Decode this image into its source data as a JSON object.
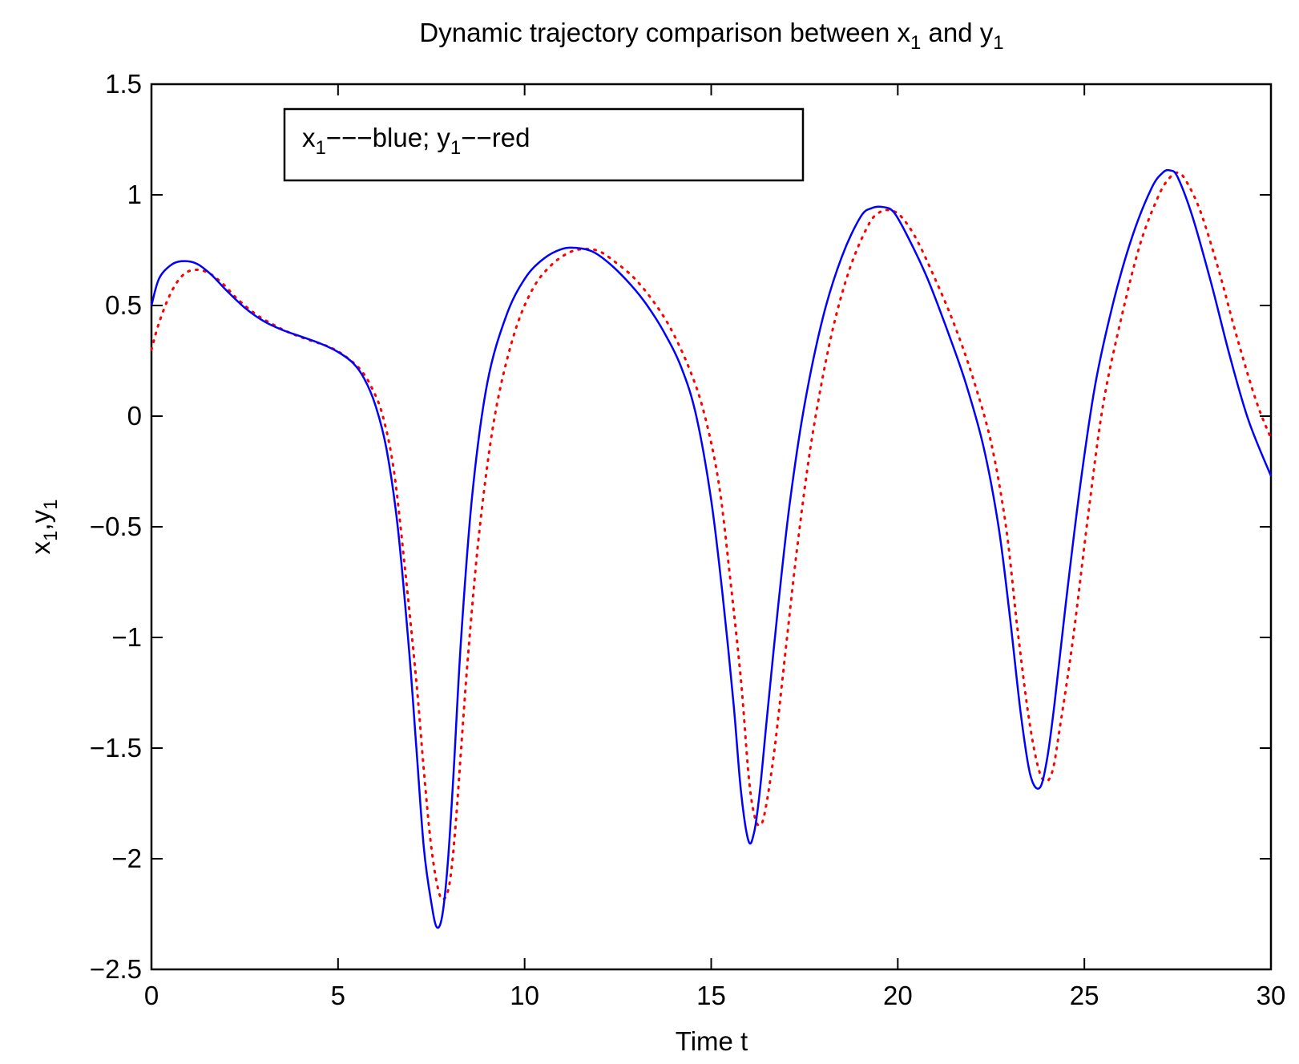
{
  "chart_data": {
    "type": "line",
    "title": "Dynamic trajectory comparison between x₁ and y₁",
    "title_parts": {
      "prefix": "Dynamic trajectory comparison between x",
      "sub1": "1",
      "mid": " and y",
      "sub2": "1"
    },
    "xlabel": "Time t",
    "ylabel": "x₁,y₁",
    "ylabel_parts": {
      "a": "x",
      "sub_a": "1",
      "sep": ",y",
      "sub_b": "1"
    },
    "xlim": [
      0,
      30
    ],
    "ylim": [
      -2.5,
      1.5
    ],
    "xticks": [
      0,
      5,
      10,
      15,
      20,
      25,
      30
    ],
    "xtick_labels": [
      "0",
      "5",
      "10",
      "15",
      "20",
      "25",
      "30"
    ],
    "yticks": [
      1.5,
      1,
      0.5,
      0,
      -0.5,
      -1,
      -1.5,
      -2,
      -2.5
    ],
    "ytick_labels": [
      "1.5",
      "1",
      "0.5",
      "0",
      "−0.5",
      "−1",
      "−1.5",
      "−2",
      "−2.5"
    ],
    "grid": false,
    "legend": {
      "text": "x₁---blue; y₁--red",
      "parts": {
        "a": "x",
        "sub_a": "1",
        "mid": "−−−blue; y",
        "sub_b": "1",
        "end": "−−red"
      },
      "placement": "top-left"
    },
    "series": [
      {
        "color": "#0000ff",
        "style": "solid",
        "x": [
          0,
          0.2,
          0.5,
          0.8,
          1.2,
          1.6,
          2.0,
          2.5,
          3.0,
          3.5,
          4.0,
          4.5,
          5.0,
          5.4,
          5.7,
          6.0,
          6.3,
          6.6,
          6.9,
          7.1,
          7.3,
          7.5,
          7.65,
          7.8,
          7.95,
          8.1,
          8.3,
          8.6,
          9.0,
          9.5,
          10.0,
          10.5,
          11.0,
          11.4,
          11.8,
          12.2,
          12.7,
          13.2,
          13.7,
          14.2,
          14.6,
          15.0,
          15.3,
          15.6,
          15.8,
          16.0,
          16.15,
          16.3,
          16.5,
          16.8,
          17.1,
          17.5,
          18.0,
          18.5,
          19.0,
          19.3,
          19.6,
          19.9,
          20.3,
          20.8,
          21.3,
          21.8,
          22.3,
          22.7,
          23.0,
          23.3,
          23.55,
          23.8,
          24.0,
          24.2,
          24.5,
          24.9,
          25.3,
          25.8,
          26.3,
          26.8,
          27.1,
          27.3,
          27.5,
          27.9,
          28.4,
          28.9,
          29.4,
          30.0
        ],
        "values": [
          0.5,
          0.62,
          0.68,
          0.7,
          0.69,
          0.64,
          0.57,
          0.49,
          0.43,
          0.39,
          0.36,
          0.33,
          0.29,
          0.24,
          0.17,
          0.05,
          -0.15,
          -0.5,
          -1.05,
          -1.5,
          -1.95,
          -2.2,
          -2.31,
          -2.25,
          -2.0,
          -1.6,
          -1.0,
          -0.35,
          0.15,
          0.45,
          0.62,
          0.71,
          0.755,
          0.76,
          0.745,
          0.7,
          0.62,
          0.52,
          0.39,
          0.22,
          0.0,
          -0.38,
          -0.8,
          -1.3,
          -1.7,
          -1.92,
          -1.88,
          -1.7,
          -1.35,
          -0.85,
          -0.4,
          0.05,
          0.45,
          0.72,
          0.9,
          0.94,
          0.945,
          0.92,
          0.8,
          0.62,
          0.4,
          0.16,
          -0.14,
          -0.5,
          -0.9,
          -1.35,
          -1.62,
          -1.68,
          -1.55,
          -1.3,
          -0.85,
          -0.3,
          0.15,
          0.53,
          0.82,
          1.03,
          1.1,
          1.11,
          1.08,
          0.9,
          0.6,
          0.27,
          -0.02,
          -0.27
        ]
      },
      {
        "color": "#ff0000",
        "style": "dotted",
        "x": [
          0,
          0.2,
          0.5,
          0.8,
          1.1,
          1.5,
          1.9,
          2.3,
          2.8,
          3.3,
          3.8,
          4.3,
          4.8,
          5.2,
          5.6,
          5.9,
          6.2,
          6.5,
          6.8,
          7.1,
          7.3,
          7.5,
          7.7,
          7.85,
          8.0,
          8.15,
          8.3,
          8.5,
          8.8,
          9.2,
          9.7,
          10.2,
          10.7,
          11.2,
          11.6,
          12.0,
          12.4,
          12.9,
          13.4,
          13.9,
          14.4,
          14.8,
          15.2,
          15.5,
          15.8,
          16.0,
          16.15,
          16.3,
          16.45,
          16.7,
          17.0,
          17.3,
          17.7,
          18.2,
          18.7,
          19.2,
          19.5,
          19.8,
          20.1,
          20.5,
          21.0,
          21.5,
          22.0,
          22.5,
          22.9,
          23.2,
          23.5,
          23.75,
          23.95,
          24.15,
          24.35,
          24.7,
          25.1,
          25.5,
          26.0,
          26.5,
          27.0,
          27.3,
          27.5,
          27.7,
          28.1,
          28.6,
          29.1,
          29.6,
          30.0
        ],
        "values": [
          0.3,
          0.42,
          0.55,
          0.63,
          0.66,
          0.65,
          0.6,
          0.53,
          0.46,
          0.41,
          0.37,
          0.34,
          0.31,
          0.27,
          0.21,
          0.13,
          0.0,
          -0.25,
          -0.7,
          -1.2,
          -1.6,
          -1.95,
          -2.15,
          -2.18,
          -2.1,
          -1.85,
          -1.5,
          -1.05,
          -0.5,
          0.0,
          0.36,
          0.57,
          0.68,
          0.74,
          0.755,
          0.745,
          0.7,
          0.63,
          0.53,
          0.4,
          0.22,
          0.02,
          -0.3,
          -0.72,
          -1.2,
          -1.62,
          -1.8,
          -1.85,
          -1.78,
          -1.5,
          -1.05,
          -0.6,
          -0.1,
          0.35,
          0.66,
          0.86,
          0.92,
          0.93,
          0.9,
          0.8,
          0.62,
          0.42,
          0.18,
          -0.12,
          -0.5,
          -0.95,
          -1.35,
          -1.58,
          -1.65,
          -1.6,
          -1.4,
          -1.0,
          -0.45,
          0.05,
          0.45,
          0.78,
          1.0,
          1.08,
          1.1,
          1.07,
          0.93,
          0.66,
          0.35,
          0.07,
          -0.1
        ]
      }
    ]
  }
}
